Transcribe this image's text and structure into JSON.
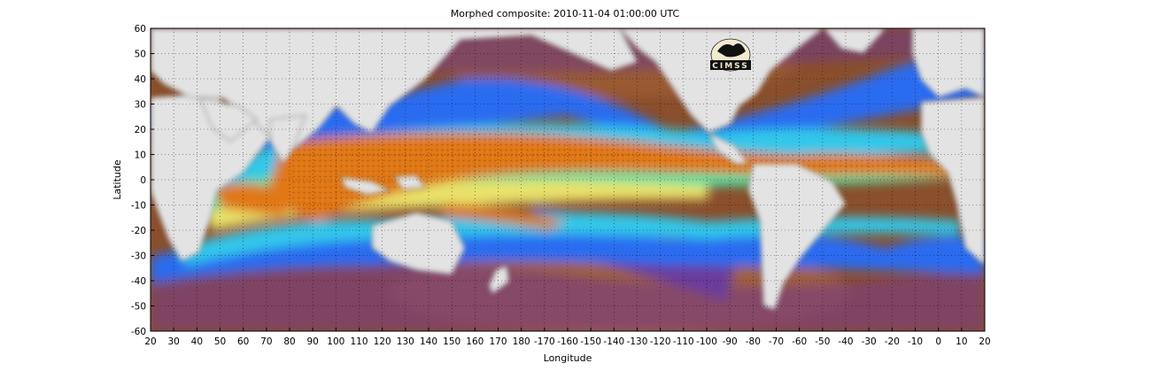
{
  "figure": {
    "title": "Morphed composite: 2010-11-04 01:00:00 UTC",
    "xlabel": "Longitude",
    "ylabel": "Latitude",
    "logo_text": "CIMSS"
  },
  "axes": {
    "x_ticks": [
      "20",
      "30",
      "40",
      "50",
      "60",
      "70",
      "80",
      "90",
      "100",
      "110",
      "120",
      "130",
      "140",
      "150",
      "160",
      "170",
      "180",
      "-170",
      "-160",
      "-150",
      "-140",
      "-130",
      "-120",
      "-110",
      "-100",
      "-90",
      "-80",
      "-70",
      "-60",
      "-50",
      "-40",
      "-30",
      "-20",
      "-10",
      "0",
      "10",
      "20"
    ],
    "y_ticks": [
      "60",
      "50",
      "40",
      "30",
      "20",
      "10",
      "0",
      "-10",
      "-20",
      "-30",
      "-40",
      "-50",
      "-60"
    ],
    "xlim": [
      20,
      380
    ],
    "ylim": [
      -60,
      60
    ],
    "grid": true
  },
  "colors": {
    "ocean_dry": "#8a4f2c",
    "ocean_dry_light": "#b36a38",
    "violet": "#6a3c9c",
    "blue": "#2a6cf0",
    "cyan": "#30c7ea",
    "green": "#4fe0a6",
    "yellow": "#e8e26a",
    "orange": "#e07818",
    "land": "#e3e3e3"
  }
}
